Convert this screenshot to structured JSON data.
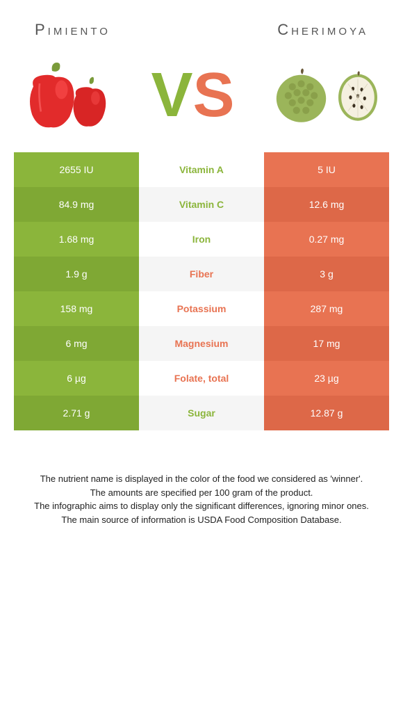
{
  "title_left": "Pimiento",
  "title_right": "Cherimoya",
  "vs_v": "V",
  "vs_s": "S",
  "colors": {
    "left": "#8bb53b",
    "left_dark": "#7fa834",
    "right": "#e87352",
    "right_dark": "#dd6848",
    "vs_v": "#8bb53b",
    "vs_s": "#e87352",
    "win_left": "#8bb53b",
    "win_right": "#e87352",
    "text_on": "#ffffff"
  },
  "rows": [
    {
      "nutrient": "Vitamin A",
      "left": "2655 IU",
      "right": "5 IU",
      "winner": "left"
    },
    {
      "nutrient": "Vitamin C",
      "left": "84.9 mg",
      "right": "12.6 mg",
      "winner": "left"
    },
    {
      "nutrient": "Iron",
      "left": "1.68 mg",
      "right": "0.27 mg",
      "winner": "left"
    },
    {
      "nutrient": "Fiber",
      "left": "1.9 g",
      "right": "3 g",
      "winner": "right"
    },
    {
      "nutrient": "Potassium",
      "left": "158 mg",
      "right": "287 mg",
      "winner": "right"
    },
    {
      "nutrient": "Magnesium",
      "left": "6 mg",
      "right": "17 mg",
      "winner": "right"
    },
    {
      "nutrient": "Folate, total",
      "left": "6 µg",
      "right": "23 µg",
      "winner": "right"
    },
    {
      "nutrient": "Sugar",
      "left": "2.71 g",
      "right": "12.87 g",
      "winner": "left"
    }
  ],
  "footer": [
    "The nutrient name is displayed in the color of the food we considered as 'winner'.",
    "The amounts are specified per 100 gram of the product.",
    "The infographic aims to display only the significant differences, ignoring minor ones.",
    "The main source of information is USDA Food Composition Database."
  ]
}
